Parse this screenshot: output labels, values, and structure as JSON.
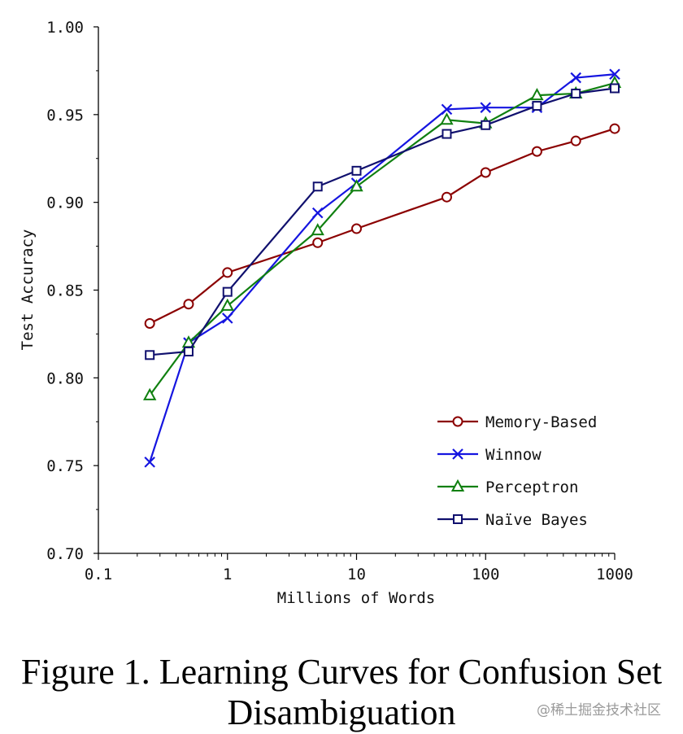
{
  "chart_data": {
    "type": "line",
    "xscale": "log",
    "xlim": [
      0.1,
      1000
    ],
    "ylim": [
      0.7,
      1.0
    ],
    "xticks": [
      0.1,
      1,
      10,
      100,
      1000
    ],
    "xtick_labels": [
      "0.1",
      "1",
      "10",
      "100",
      "1000"
    ],
    "yticks": [
      0.7,
      0.75,
      0.8,
      0.85,
      0.9,
      0.95,
      1.0
    ],
    "ytick_labels": [
      "0.70",
      "0.75",
      "0.80",
      "0.85",
      "0.90",
      "0.95",
      "1.00"
    ],
    "xlabel": "Millions of Words",
    "ylabel": "Test Accuracy",
    "legend_position": "bottom-right",
    "series": [
      {
        "name": "Memory-Based",
        "color": "#8b0000",
        "marker": "circle",
        "x": [
          0.25,
          0.5,
          1,
          5,
          10,
          50,
          100,
          250,
          500,
          1000
        ],
        "y": [
          0.831,
          0.842,
          0.86,
          0.877,
          0.885,
          0.903,
          0.917,
          0.929,
          0.935,
          0.942
        ]
      },
      {
        "name": "Winnow",
        "color": "#1515e0",
        "marker": "x",
        "x": [
          0.25,
          0.5,
          1,
          5,
          10,
          50,
          100,
          250,
          500,
          1000
        ],
        "y": [
          0.752,
          0.82,
          0.834,
          0.894,
          0.911,
          0.953,
          0.954,
          0.954,
          0.971,
          0.973
        ]
      },
      {
        "name": "Perceptron",
        "color": "#108010",
        "marker": "triangle",
        "x": [
          0.25,
          0.5,
          1,
          5,
          10,
          50,
          100,
          250,
          500,
          1000
        ],
        "y": [
          0.79,
          0.82,
          0.841,
          0.884,
          0.909,
          0.947,
          0.945,
          0.961,
          0.962,
          0.968
        ]
      },
      {
        "name": "Naïve Bayes",
        "color": "#10106e",
        "marker": "square",
        "x": [
          0.25,
          0.5,
          1,
          5,
          10,
          50,
          100,
          250,
          500,
          1000
        ],
        "y": [
          0.813,
          0.815,
          0.849,
          0.909,
          0.918,
          0.939,
          0.944,
          0.955,
          0.962,
          0.965
        ]
      }
    ]
  },
  "caption": {
    "line1": "Figure 1. Learning Curves for Confusion Set",
    "line2": "Disambiguation"
  },
  "watermark": "@稀土掘金技术社区"
}
